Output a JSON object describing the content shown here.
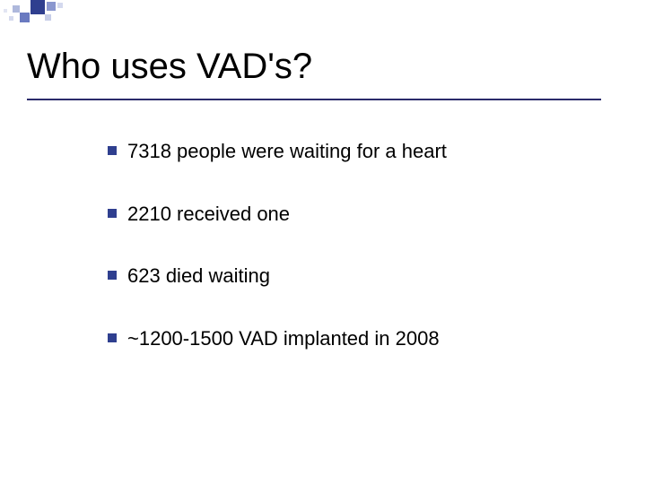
{
  "title": "Who uses VAD's?",
  "bullets": [
    {
      "text": "7318 people were waiting for a heart"
    },
    {
      "text": "2210 received one"
    },
    {
      "text": "623 died waiting"
    },
    {
      "text": "~1200-1500 VAD implanted in 2008"
    }
  ],
  "colors": {
    "bullet_marker": "#2f3f8f",
    "rule": "#2b2b6b",
    "text": "#000000",
    "background": "#ffffff"
  },
  "fonts": {
    "title_size_pt": 40,
    "body_size_pt": 22,
    "family": "Arial"
  }
}
